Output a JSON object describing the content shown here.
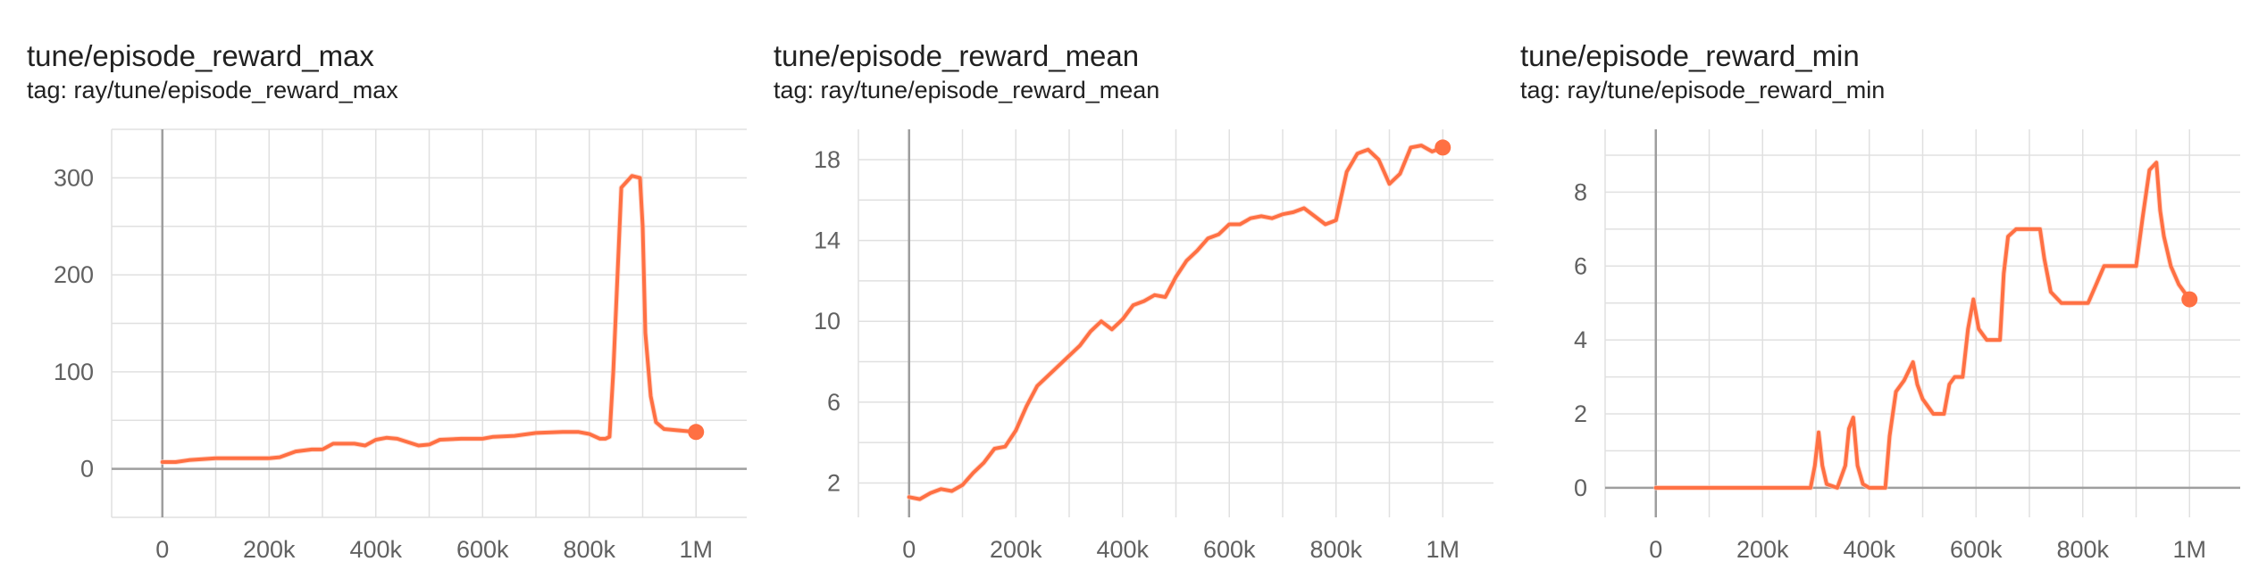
{
  "colors": {
    "series": "#ff7043",
    "raw": "#ffccbc",
    "grid": "#e0e0e0",
    "axis": "#9e9e9e",
    "tick_text": "#616161"
  },
  "chart_data": [
    {
      "type": "line",
      "title": "tune/episode_reward_max",
      "subtitle": "tag: ray/tune/episode_reward_max",
      "xlabel": "",
      "ylabel": "",
      "xlim": [
        -95000,
        1095000
      ],
      "ylim": [
        -50,
        350
      ],
      "x_ticks": [
        0,
        200000,
        400000,
        600000,
        800000,
        1000000
      ],
      "x_tick_labels": [
        "0",
        "200k",
        "400k",
        "600k",
        "800k",
        "1M"
      ],
      "y_ticks": [
        0,
        100,
        200,
        300
      ],
      "y_tick_labels": [
        "0",
        "100",
        "200",
        "300"
      ],
      "grid": true,
      "series": [
        {
          "x": [
            0,
            25000,
            50000,
            75000,
            100000,
            150000,
            200000,
            220000,
            250000,
            280000,
            300000,
            320000,
            360000,
            380000,
            400000,
            420000,
            440000,
            480000,
            500000,
            520000,
            560000,
            600000,
            620000,
            660000,
            700000,
            750000,
            780000,
            800000,
            820000,
            830000,
            838000,
            845000,
            860000,
            880000,
            895000,
            900000,
            905000,
            915000,
            925000,
            940000,
            960000,
            1000000
          ],
          "y": [
            7,
            7,
            9,
            10,
            11,
            11,
            11,
            12,
            18,
            20,
            20,
            26,
            26,
            24,
            30,
            32,
            31,
            24,
            25,
            30,
            31,
            31,
            33,
            34,
            37,
            38,
            38,
            36,
            31,
            31,
            33,
            100,
            290,
            302,
            300,
            250,
            140,
            75,
            48,
            41,
            40,
            38
          ]
        }
      ]
    },
    {
      "type": "line",
      "title": "tune/episode_reward_mean",
      "subtitle": "tag: ray/tune/episode_reward_mean",
      "xlabel": "",
      "ylabel": "",
      "xlim": [
        -95000,
        1095000
      ],
      "ylim": [
        0.3,
        19.5
      ],
      "x_ticks": [
        0,
        200000,
        400000,
        600000,
        800000,
        1000000
      ],
      "x_tick_labels": [
        "0",
        "200k",
        "400k",
        "600k",
        "800k",
        "1M"
      ],
      "y_ticks": [
        2,
        6,
        10,
        14,
        18
      ],
      "y_tick_labels": [
        "2",
        "6",
        "10",
        "14",
        "18"
      ],
      "grid": true,
      "series": [
        {
          "x": [
            0,
            20000,
            40000,
            60000,
            80000,
            100000,
            120000,
            140000,
            160000,
            180000,
            200000,
            220000,
            240000,
            260000,
            280000,
            300000,
            320000,
            340000,
            360000,
            380000,
            400000,
            420000,
            440000,
            460000,
            480000,
            500000,
            520000,
            540000,
            560000,
            580000,
            600000,
            620000,
            640000,
            660000,
            680000,
            700000,
            720000,
            740000,
            760000,
            780000,
            800000,
            820000,
            840000,
            860000,
            880000,
            900000,
            920000,
            940000,
            960000,
            980000,
            1000000
          ],
          "y": [
            1.3,
            1.2,
            1.5,
            1.7,
            1.6,
            1.9,
            2.5,
            3.0,
            3.7,
            3.8,
            4.6,
            5.8,
            6.8,
            7.3,
            7.8,
            8.3,
            8.8,
            9.5,
            10.0,
            9.6,
            10.1,
            10.8,
            11.0,
            11.3,
            11.2,
            12.2,
            13.0,
            13.5,
            14.1,
            14.3,
            14.8,
            14.8,
            15.1,
            15.2,
            15.1,
            15.3,
            15.4,
            15.6,
            15.2,
            14.8,
            15.0,
            17.4,
            18.3,
            18.5,
            18.0,
            16.8,
            17.3,
            18.6,
            18.7,
            18.4,
            18.6
          ]
        }
      ]
    },
    {
      "type": "line",
      "title": "tune/episode_reward_min",
      "subtitle": "tag: ray/tune/episode_reward_min",
      "xlabel": "",
      "ylabel": "",
      "xlim": [
        -95000,
        1095000
      ],
      "ylim": [
        -0.8,
        9.7
      ],
      "x_ticks": [
        0,
        200000,
        400000,
        600000,
        800000,
        1000000
      ],
      "x_tick_labels": [
        "0",
        "200k",
        "400k",
        "600k",
        "800k",
        "1M"
      ],
      "y_ticks": [
        0,
        2,
        4,
        6,
        8
      ],
      "y_tick_labels": [
        "0",
        "2",
        "4",
        "6",
        "8"
      ],
      "grid": true,
      "series": [
        {
          "x": [
            0,
            100000,
            200000,
            290000,
            298000,
            305000,
            312000,
            320000,
            340000,
            355000,
            362000,
            370000,
            378000,
            388000,
            400000,
            430000,
            438000,
            450000,
            465000,
            482000,
            490000,
            500000,
            520000,
            540000,
            550000,
            560000,
            575000,
            585000,
            595000,
            605000,
            620000,
            645000,
            652000,
            660000,
            675000,
            720000,
            728000,
            740000,
            760000,
            800000,
            810000,
            825000,
            840000,
            900000,
            912000,
            925000,
            938000,
            945000,
            952000,
            965000,
            980000,
            990000,
            1000000
          ],
          "y": [
            0,
            0,
            0,
            0,
            0.6,
            1.5,
            0.6,
            0.1,
            0,
            0.6,
            1.6,
            1.9,
            0.6,
            0.1,
            0,
            0,
            1.4,
            2.6,
            2.9,
            3.4,
            2.8,
            2.4,
            2.0,
            2.0,
            2.8,
            3.0,
            3.0,
            4.3,
            5.1,
            4.3,
            4.0,
            4.0,
            5.8,
            6.8,
            7.0,
            7.0,
            6.2,
            5.3,
            5.0,
            5.0,
            5.0,
            5.5,
            6.0,
            6.0,
            7.3,
            8.6,
            8.8,
            7.5,
            6.8,
            6.0,
            5.5,
            5.3,
            5.1
          ]
        }
      ]
    }
  ]
}
